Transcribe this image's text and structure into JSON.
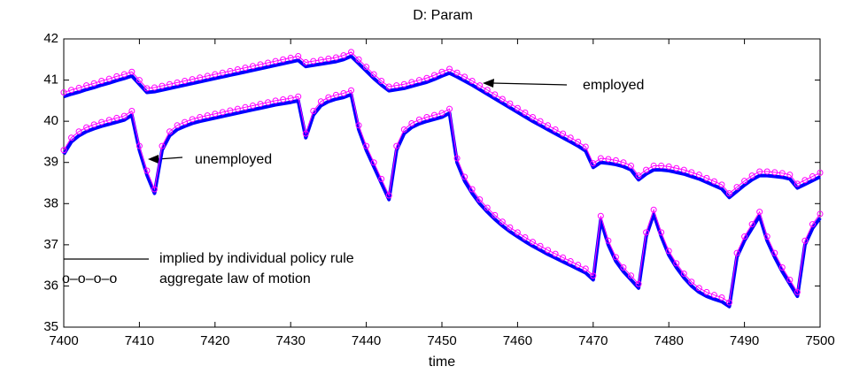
{
  "chart_data": {
    "type": "line",
    "title": "D: Param",
    "xlabel": "time",
    "x": [
      7400,
      7401,
      7402,
      7403,
      7404,
      7405,
      7406,
      7407,
      7408,
      7409,
      7410,
      7411,
      7412,
      7413,
      7414,
      7415,
      7416,
      7417,
      7418,
      7419,
      7420,
      7421,
      7422,
      7423,
      7424,
      7425,
      7426,
      7427,
      7428,
      7429,
      7430,
      7431,
      7432,
      7433,
      7434,
      7435,
      7436,
      7437,
      7438,
      7439,
      7440,
      7441,
      7442,
      7443,
      7444,
      7445,
      7446,
      7447,
      7448,
      7449,
      7450,
      7451,
      7452,
      7453,
      7454,
      7455,
      7456,
      7457,
      7458,
      7459,
      7460,
      7461,
      7462,
      7463,
      7464,
      7465,
      7466,
      7467,
      7468,
      7469,
      7470,
      7471,
      7472,
      7473,
      7474,
      7475,
      7476,
      7477,
      7478,
      7479,
      7480,
      7481,
      7482,
      7483,
      7484,
      7485,
      7486,
      7487,
      7488,
      7489,
      7490,
      7491,
      7492,
      7493,
      7494,
      7495,
      7496,
      7497,
      7498,
      7499,
      7500
    ],
    "series": [
      {
        "name": "implied by individual policy rule",
        "color": "#0000ff",
        "values": [
          40.6,
          40.66,
          40.71,
          40.77,
          40.82,
          40.88,
          40.93,
          40.99,
          41.04,
          41.1,
          40.9,
          40.7,
          40.72,
          40.76,
          40.8,
          40.84,
          40.88,
          40.92,
          40.96,
          41.0,
          41.04,
          41.08,
          41.12,
          41.16,
          41.2,
          41.24,
          41.28,
          41.32,
          41.36,
          41.4,
          41.44,
          41.48,
          41.33,
          41.36,
          41.39,
          41.42,
          41.45,
          41.5,
          41.58,
          41.4,
          41.22,
          41.04,
          40.88,
          40.74,
          40.77,
          40.8,
          40.85,
          40.9,
          40.95,
          41.02,
          41.1,
          41.17,
          41.08,
          40.98,
          40.88,
          40.77,
          40.66,
          40.55,
          40.44,
          40.33,
          40.22,
          40.11,
          40.0,
          39.9,
          39.8,
          39.7,
          39.6,
          39.5,
          39.4,
          39.28,
          38.88,
          39.0,
          38.98,
          38.95,
          38.9,
          38.82,
          38.58,
          38.72,
          38.82,
          38.82,
          38.8,
          38.76,
          38.72,
          38.66,
          38.6,
          38.52,
          38.44,
          38.36,
          38.15,
          38.3,
          38.45,
          38.58,
          38.68,
          38.68,
          38.66,
          38.64,
          38.6,
          38.38,
          38.47,
          38.56,
          38.65
        ]
      },
      {
        "name": "aggregate law of motion",
        "color": "#ff00ff",
        "values": [
          40.7,
          40.76,
          40.81,
          40.87,
          40.92,
          40.98,
          41.03,
          41.09,
          41.14,
          41.2,
          41.0,
          40.8,
          40.82,
          40.86,
          40.9,
          40.94,
          40.98,
          41.02,
          41.06,
          41.1,
          41.14,
          41.18,
          41.22,
          41.26,
          41.3,
          41.34,
          41.38,
          41.42,
          41.46,
          41.5,
          41.54,
          41.58,
          41.43,
          41.46,
          41.49,
          41.52,
          41.55,
          41.6,
          41.68,
          41.5,
          41.32,
          41.14,
          40.98,
          40.84,
          40.87,
          40.9,
          40.95,
          41.0,
          41.05,
          41.12,
          41.2,
          41.27,
          41.18,
          41.08,
          40.98,
          40.87,
          40.76,
          40.65,
          40.54,
          40.43,
          40.32,
          40.21,
          40.1,
          40.0,
          39.9,
          39.8,
          39.7,
          39.6,
          39.5,
          39.38,
          38.98,
          39.1,
          39.08,
          39.05,
          39.0,
          38.92,
          38.68,
          38.82,
          38.92,
          38.92,
          38.9,
          38.86,
          38.82,
          38.76,
          38.7,
          38.62,
          38.54,
          38.46,
          38.25,
          38.4,
          38.55,
          38.68,
          38.78,
          38.78,
          38.76,
          38.74,
          38.7,
          38.48,
          38.57,
          38.66,
          38.75
        ]
      },
      {
        "color": "#0000ff",
        "values": [
          39.2,
          39.5,
          39.65,
          39.75,
          39.82,
          39.88,
          39.93,
          39.98,
          40.03,
          40.15,
          39.3,
          38.7,
          38.25,
          39.3,
          39.65,
          39.8,
          39.88,
          39.95,
          40.0,
          40.04,
          40.08,
          40.12,
          40.16,
          40.2,
          40.24,
          40.28,
          40.32,
          40.36,
          40.4,
          40.43,
          40.46,
          40.5,
          39.6,
          40.15,
          40.38,
          40.48,
          40.54,
          40.58,
          40.65,
          39.8,
          39.3,
          38.9,
          38.5,
          38.1,
          39.3,
          39.7,
          39.85,
          39.94,
          40.0,
          40.05,
          40.1,
          40.2,
          39.0,
          38.55,
          38.25,
          38.0,
          37.8,
          37.62,
          37.46,
          37.32,
          37.2,
          37.08,
          36.97,
          36.87,
          36.77,
          36.68,
          36.59,
          36.5,
          36.41,
          36.32,
          36.15,
          37.6,
          37.0,
          36.6,
          36.35,
          36.15,
          35.95,
          37.2,
          37.75,
          37.2,
          36.75,
          36.45,
          36.2,
          36.0,
          35.85,
          35.75,
          35.68,
          35.62,
          35.5,
          36.7,
          37.1,
          37.4,
          37.7,
          37.1,
          36.7,
          36.35,
          36.05,
          35.75,
          37.0,
          37.4,
          37.65
        ]
      },
      {
        "color": "#ff00ff",
        "values": [
          39.3,
          39.6,
          39.75,
          39.85,
          39.92,
          39.98,
          40.03,
          40.08,
          40.13,
          40.25,
          39.4,
          38.8,
          38.35,
          39.4,
          39.75,
          39.9,
          39.98,
          40.05,
          40.1,
          40.14,
          40.18,
          40.22,
          40.26,
          40.3,
          40.34,
          40.38,
          40.42,
          40.46,
          40.5,
          40.53,
          40.56,
          40.6,
          39.7,
          40.25,
          40.48,
          40.58,
          40.64,
          40.68,
          40.75,
          39.9,
          39.4,
          39.0,
          38.6,
          38.2,
          39.4,
          39.8,
          39.95,
          40.04,
          40.1,
          40.15,
          40.2,
          40.3,
          39.1,
          38.65,
          38.35,
          38.1,
          37.9,
          37.72,
          37.56,
          37.42,
          37.3,
          37.18,
          37.07,
          36.97,
          36.87,
          36.78,
          36.69,
          36.6,
          36.51,
          36.42,
          36.25,
          37.7,
          37.1,
          36.7,
          36.45,
          36.25,
          36.05,
          37.3,
          37.85,
          37.3,
          36.85,
          36.55,
          36.3,
          36.1,
          35.95,
          35.85,
          35.78,
          35.72,
          35.6,
          36.8,
          37.2,
          37.5,
          37.8,
          37.2,
          36.8,
          36.45,
          36.15,
          35.85,
          37.1,
          37.5,
          37.75
        ]
      }
    ],
    "legend_symbol": "o–o–o–o",
    "annotations": [
      "employed",
      "unemployed"
    ],
    "xlim": [
      7400,
      7500
    ],
    "xticks": [
      7400,
      7410,
      7420,
      7430,
      7440,
      7450,
      7460,
      7470,
      7480,
      7490,
      7500
    ],
    "ylim": [
      35,
      42
    ],
    "yticks": [
      35,
      36,
      37,
      38,
      39,
      40,
      41,
      42
    ]
  }
}
